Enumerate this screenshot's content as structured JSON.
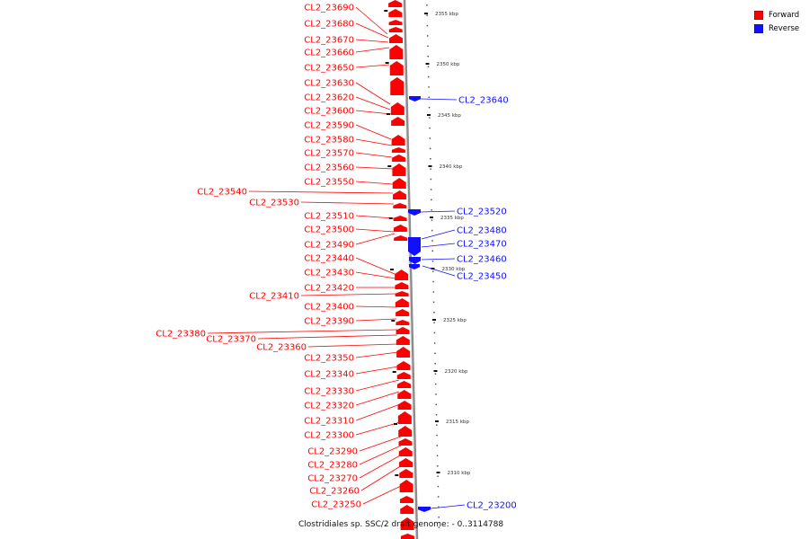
{
  "caption": "Clostridiales sp. SSC/2 draft genome: - 0..3114788",
  "colors": {
    "forward": "#ff0000",
    "reverse": "#1010ff",
    "backbone": "#8c8c8c"
  },
  "legend": [
    {
      "label": "Forward",
      "color": "#ff0000"
    },
    {
      "label": "Reverse",
      "color": "#1010ff"
    }
  ],
  "ticks": [
    {
      "label": "2355 kbp"
    },
    {
      "label": "2350 kbp"
    },
    {
      "label": "2345 kbp"
    },
    {
      "label": "2340 kbp"
    },
    {
      "label": "2335 kbp"
    },
    {
      "label": "2330 kbp"
    },
    {
      "label": "2325 kbp"
    },
    {
      "label": "2320 kbp"
    },
    {
      "label": "2315 kbp"
    },
    {
      "label": "2310 kbp"
    }
  ],
  "genes_forward": [
    {
      "id": "CL2_23690"
    },
    {
      "id": "CL2_23680"
    },
    {
      "id": "CL2_23670"
    },
    {
      "id": "CL2_23660"
    },
    {
      "id": "CL2_23650"
    },
    {
      "id": "CL2_23630"
    },
    {
      "id": "CL2_23620"
    },
    {
      "id": "CL2_23600"
    },
    {
      "id": "CL2_23590"
    },
    {
      "id": "CL2_23580"
    },
    {
      "id": "CL2_23570"
    },
    {
      "id": "CL2_23560"
    },
    {
      "id": "CL2_23550"
    },
    {
      "id": "CL2_23540"
    },
    {
      "id": "CL2_23530"
    },
    {
      "id": "CL2_23510"
    },
    {
      "id": "CL2_23500"
    },
    {
      "id": "CL2_23490"
    },
    {
      "id": "CL2_23440"
    },
    {
      "id": "CL2_23430"
    },
    {
      "id": "CL2_23420"
    },
    {
      "id": "CL2_23410"
    },
    {
      "id": "CL2_23400"
    },
    {
      "id": "CL2_23390"
    },
    {
      "id": "CL2_23380"
    },
    {
      "id": "CL2_23370"
    },
    {
      "id": "CL2_23360"
    },
    {
      "id": "CL2_23350"
    },
    {
      "id": "CL2_23340"
    },
    {
      "id": "CL2_23330"
    },
    {
      "id": "CL2_23320"
    },
    {
      "id": "CL2_23310"
    },
    {
      "id": "CL2_23300"
    },
    {
      "id": "CL2_23290"
    },
    {
      "id": "CL2_23280"
    },
    {
      "id": "CL2_23270"
    },
    {
      "id": "CL2_23260"
    },
    {
      "id": "CL2_23250"
    }
  ],
  "genes_reverse": [
    {
      "id": "CL2_23640"
    },
    {
      "id": "CL2_23520"
    },
    {
      "id": "CL2_23480"
    },
    {
      "id": "CL2_23470"
    },
    {
      "id": "CL2_23460"
    },
    {
      "id": "CL2_23450"
    },
    {
      "id": "CL2_23200"
    }
  ]
}
